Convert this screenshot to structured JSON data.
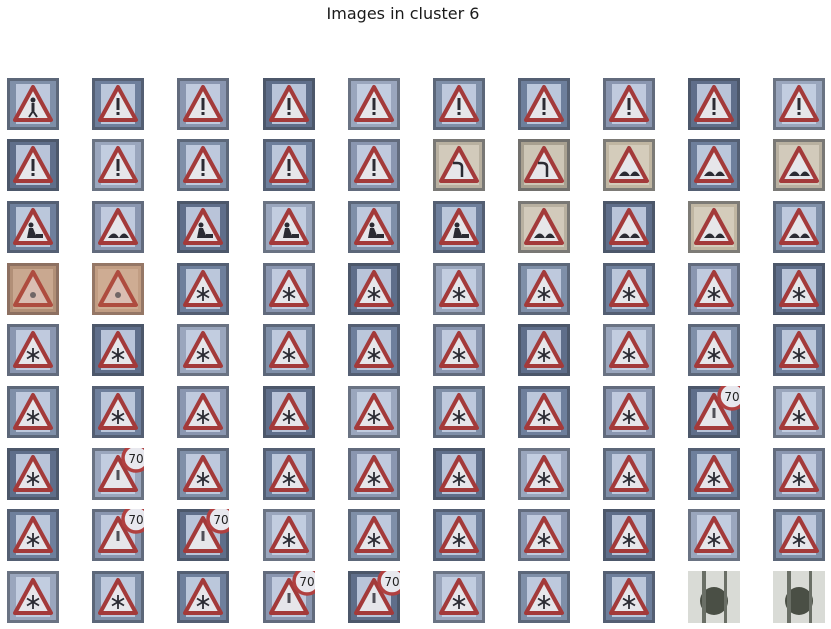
{
  "figure": {
    "title": "Images in cluster 6",
    "grid_rows": 9,
    "grid_cols": 10
  },
  "tiles": [
    [
      "pedestrian",
      "general",
      "general",
      "general",
      "general",
      "general",
      "general",
      "general",
      "general",
      "general"
    ],
    [
      "general",
      "general",
      "general",
      "general",
      "general",
      "curve-left",
      "curve-left",
      "bumpy-road",
      "bumpy-road",
      "bumpy-road"
    ],
    [
      "roadwork",
      "bumpy-road",
      "roadwork",
      "roadwork",
      "roadwork",
      "roadwork",
      "bumpy-road",
      "bumpy-road",
      "bumpy-road",
      "bumpy-road"
    ],
    [
      "worn-sign",
      "worn-sign",
      "snowflake",
      "snowflake",
      "snowflake",
      "snowflake",
      "snowflake",
      "snowflake",
      "snowflake",
      "snowflake"
    ],
    [
      "snowflake",
      "snowflake",
      "snowflake",
      "snowflake",
      "snowflake",
      "snowflake",
      "snowflake",
      "snowflake",
      "snowflake",
      "snowflake"
    ],
    [
      "snowflake",
      "snowflake",
      "snowflake",
      "snowflake",
      "snowflake",
      "snowflake",
      "snowflake",
      "snowflake",
      "speed-70-overlap",
      "snowflake"
    ],
    [
      "snowflake",
      "speed-70-overlap",
      "snowflake",
      "snowflake",
      "snowflake",
      "snowflake",
      "snowflake",
      "snowflake",
      "snowflake",
      "snowflake"
    ],
    [
      "snowflake",
      "speed-70-overlap",
      "speed-70-overlap",
      "snowflake",
      "snowflake",
      "snowflake",
      "snowflake",
      "snowflake",
      "snowflake",
      "snowflake"
    ],
    [
      "snowflake",
      "snowflake",
      "snowflake",
      "speed-70-overlap",
      "speed-70-overlap",
      "snowflake",
      "snowflake",
      "snowflake",
      "blurry-sign",
      "blurry-sign"
    ]
  ],
  "palette": {
    "bg_cool": [
      "#7f8fa8",
      "#6e7f9c",
      "#8a96b0",
      "#5f6e8a",
      "#9aa6bd"
    ],
    "bg_warm": [
      "#b8b0a0",
      "#a8a090",
      "#c0b6a2",
      "#8c8470"
    ],
    "panel_light": "#c9d3e6",
    "sign_red": "#a33a3a",
    "symbol_dark": "#2b2b33"
  }
}
